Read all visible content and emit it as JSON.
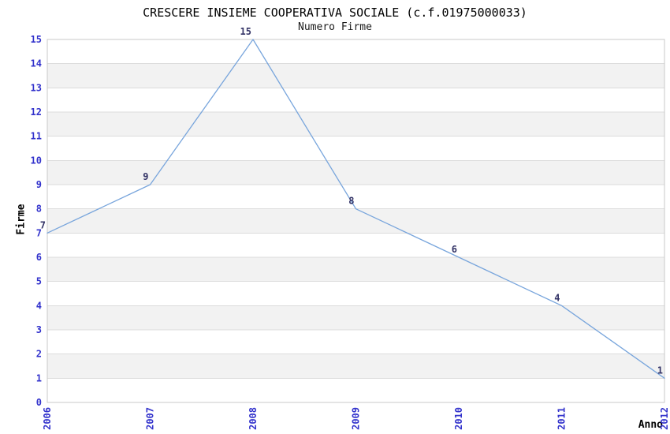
{
  "chart_data": {
    "type": "line",
    "title": "CRESCERE INSIEME COOPERATIVA SOCIALE (c.f.01975000033)",
    "subtitle": "Numero Firme",
    "xlabel": "Anno",
    "ylabel": "Firme",
    "x": [
      "2006",
      "2007",
      "2008",
      "2009",
      "2010",
      "2011",
      "2012"
    ],
    "series": [
      {
        "name": "Numero Firme",
        "values": [
          7,
          9,
          15,
          8,
          6,
          4,
          1
        ]
      }
    ],
    "point_labels": [
      7,
      9,
      15,
      8,
      6,
      4,
      1
    ],
    "ylim": [
      0,
      15
    ],
    "ytick_step": 1,
    "grid": "horizontal gridlines with alternating white/gray bands",
    "legend": "none",
    "x_tick_rotation": -90
  },
  "colors": {
    "line": "#78a5dc",
    "tick_label": "#3333cc",
    "point_label": "#333366",
    "band_gray": "#f2f2f2",
    "band_white": "#ffffff",
    "gridline": "#dcdcdc",
    "border": "#c8c8c8",
    "text": "#000000",
    "background": "#ffffff"
  }
}
